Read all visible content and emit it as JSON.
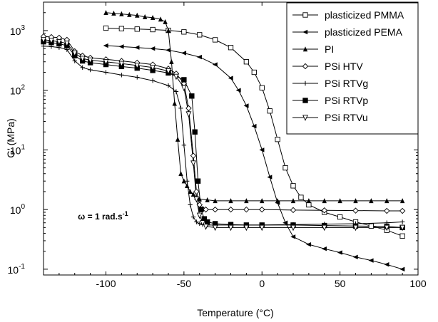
{
  "chart_data": {
    "type": "line",
    "xlabel": "Temperature (°C)",
    "ylabel": "G' (MPa)",
    "xlim": [
      -140,
      100
    ],
    "ylim": [
      0.08,
      3000
    ],
    "yscale": "log",
    "x_ticks": [
      "-100",
      "-50",
      "0",
      "50",
      "100"
    ],
    "x_tick_values": [
      -100,
      -50,
      0,
      50,
      100
    ],
    "y_ticks": [
      {
        "base": "10",
        "exp": "-1",
        "value": 0.1
      },
      {
        "base": "10",
        "exp": "0",
        "value": 1
      },
      {
        "base": "10",
        "exp": "1",
        "value": 10
      },
      {
        "base": "10",
        "exp": "2",
        "value": 100
      },
      {
        "base": "10",
        "exp": "3",
        "value": 1000
      }
    ],
    "annotation": {
      "text": "ω = 1 rad.s",
      "sup": "-1",
      "x": -118,
      "y": 0.68
    },
    "legend": {
      "position": "top-right"
    },
    "series": [
      {
        "name": "plasticized PMMA",
        "marker": "square-open",
        "x": [
          -100,
          -90,
          -80,
          -70,
          -60,
          -50,
          -40,
          -30,
          -20,
          -10,
          -5,
          0,
          5,
          10,
          15,
          20,
          25,
          30,
          40,
          50,
          60,
          70,
          80,
          90
        ],
        "y": [
          1100,
          1080,
          1060,
          1040,
          1010,
          950,
          850,
          700,
          520,
          300,
          200,
          110,
          45,
          15,
          5,
          2.5,
          1.6,
          1.2,
          0.9,
          0.75,
          0.62,
          0.53,
          0.45,
          0.36
        ]
      },
      {
        "name": "plasticized PEMA",
        "marker": "triangle-left-filled",
        "x": [
          -100,
          -90,
          -80,
          -70,
          -60,
          -50,
          -40,
          -30,
          -20,
          -15,
          -10,
          -5,
          0,
          5,
          10,
          15,
          20,
          30,
          40,
          50,
          60,
          70,
          80,
          90
        ],
        "y": [
          560,
          540,
          520,
          500,
          470,
          420,
          360,
          270,
          160,
          100,
          55,
          25,
          10,
          3.5,
          1.3,
          0.6,
          0.35,
          0.26,
          0.22,
          0.19,
          0.16,
          0.14,
          0.12,
          0.1
        ]
      },
      {
        "name": "PI",
        "marker": "triangle-up-filled",
        "x": [
          -100,
          -95,
          -90,
          -85,
          -80,
          -75,
          -70,
          -65,
          -62,
          -60,
          -58,
          -56,
          -54,
          -52,
          -50,
          -48,
          -46,
          -44,
          -42,
          -40,
          -35,
          -30,
          -20,
          -10,
          0,
          10,
          20,
          30,
          40,
          50,
          60,
          70,
          80,
          90
        ],
        "y": [
          2000,
          1950,
          1900,
          1850,
          1800,
          1700,
          1650,
          1550,
          1400,
          1000,
          300,
          60,
          15,
          4,
          3,
          2.5,
          2,
          1.8,
          1.6,
          1.5,
          1.45,
          1.4,
          1.4,
          1.4,
          1.4,
          1.4,
          1.4,
          1.4,
          1.4,
          1.4,
          1.4,
          1.4,
          1.4,
          1.4
        ]
      },
      {
        "name": "PSi HTV",
        "marker": "diamond-open",
        "x": [
          -140,
          -135,
          -130,
          -125,
          -120,
          -115,
          -110,
          -100,
          -90,
          -80,
          -70,
          -60,
          -55,
          -50,
          -47,
          -44,
          -42,
          -40,
          -38,
          -36,
          -30,
          -20,
          -10,
          0,
          20,
          40,
          60,
          80,
          90
        ],
        "y": [
          800,
          780,
          760,
          700,
          450,
          380,
          350,
          330,
          310,
          290,
          270,
          230,
          190,
          130,
          50,
          8,
          2,
          1.2,
          1.02,
          1,
          1,
          1,
          1,
          1,
          0.98,
          0.97,
          0.96,
          0.95,
          0.95
        ]
      },
      {
        "name": "PSi RTVg",
        "marker": "plus",
        "x": [
          -140,
          -135,
          -130,
          -125,
          -120,
          -115,
          -110,
          -100,
          -90,
          -80,
          -70,
          -60,
          -55,
          -52,
          -50,
          -48,
          -46,
          -44,
          -42,
          -40,
          -38,
          -35,
          -30,
          -20,
          0,
          20,
          40,
          60,
          80,
          90
        ],
        "y": [
          550,
          540,
          520,
          480,
          310,
          240,
          220,
          200,
          180,
          165,
          145,
          120,
          95,
          50,
          12,
          3,
          1.2,
          0.75,
          0.62,
          0.58,
          0.56,
          0.55,
          0.55,
          0.55,
          0.55,
          0.56,
          0.57,
          0.58,
          0.6,
          0.62
        ]
      },
      {
        "name": "PSi RTVp",
        "marker": "square-filled",
        "x": [
          -140,
          -135,
          -130,
          -125,
          -120,
          -115,
          -110,
          -100,
          -90,
          -80,
          -70,
          -60,
          -50,
          -45,
          -43,
          -41,
          -39,
          -37,
          -35,
          -30,
          -20,
          -10,
          0,
          20,
          40,
          60,
          80,
          90
        ],
        "y": [
          650,
          630,
          600,
          560,
          380,
          310,
          290,
          270,
          250,
          235,
          215,
          195,
          150,
          80,
          20,
          3,
          1,
          0.7,
          0.62,
          0.58,
          0.56,
          0.55,
          0.55,
          0.55,
          0.54,
          0.53,
          0.52,
          0.5
        ]
      },
      {
        "name": "PSi RTVu",
        "marker": "triangle-down-open",
        "x": [
          -140,
          -135,
          -130,
          -125,
          -120,
          -115,
          -110,
          -100,
          -90,
          -80,
          -70,
          -60,
          -55,
          -50,
          -47,
          -44,
          -42,
          -40,
          -38,
          -36,
          -30,
          -20,
          -10,
          0,
          20,
          40,
          60,
          80,
          90
        ],
        "y": [
          700,
          680,
          650,
          610,
          420,
          340,
          320,
          300,
          280,
          260,
          240,
          210,
          170,
          110,
          40,
          6,
          1.5,
          0.8,
          0.6,
          0.52,
          0.5,
          0.5,
          0.5,
          0.5,
          0.5,
          0.5,
          0.5,
          0.5,
          0.5
        ]
      }
    ]
  }
}
